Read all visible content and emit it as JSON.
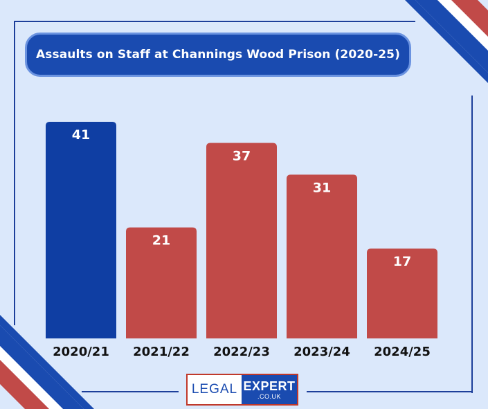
{
  "chart_data": {
    "type": "bar",
    "title": "Assaults on Staff at Channings Wood Prison (2020-25)",
    "categories": [
      "2020/21",
      "2021/22",
      "2022/23",
      "2023/24",
      "2024/25"
    ],
    "values": [
      41,
      21,
      37,
      31,
      17
    ],
    "bar_colors": [
      "#0f3ea3",
      "#c14a48",
      "#c14a48",
      "#c14a48",
      "#c14a48"
    ],
    "data_labels": "inside-top",
    "grid": false,
    "legend": "none"
  },
  "logo": {
    "left": "LEGAL",
    "main": "EXPERT",
    "sub": ".CO.UK"
  },
  "colors": {
    "background": "#dbe8fb",
    "navy": "#1a4bb0",
    "red": "#c14a48",
    "white": "#ffffff"
  }
}
